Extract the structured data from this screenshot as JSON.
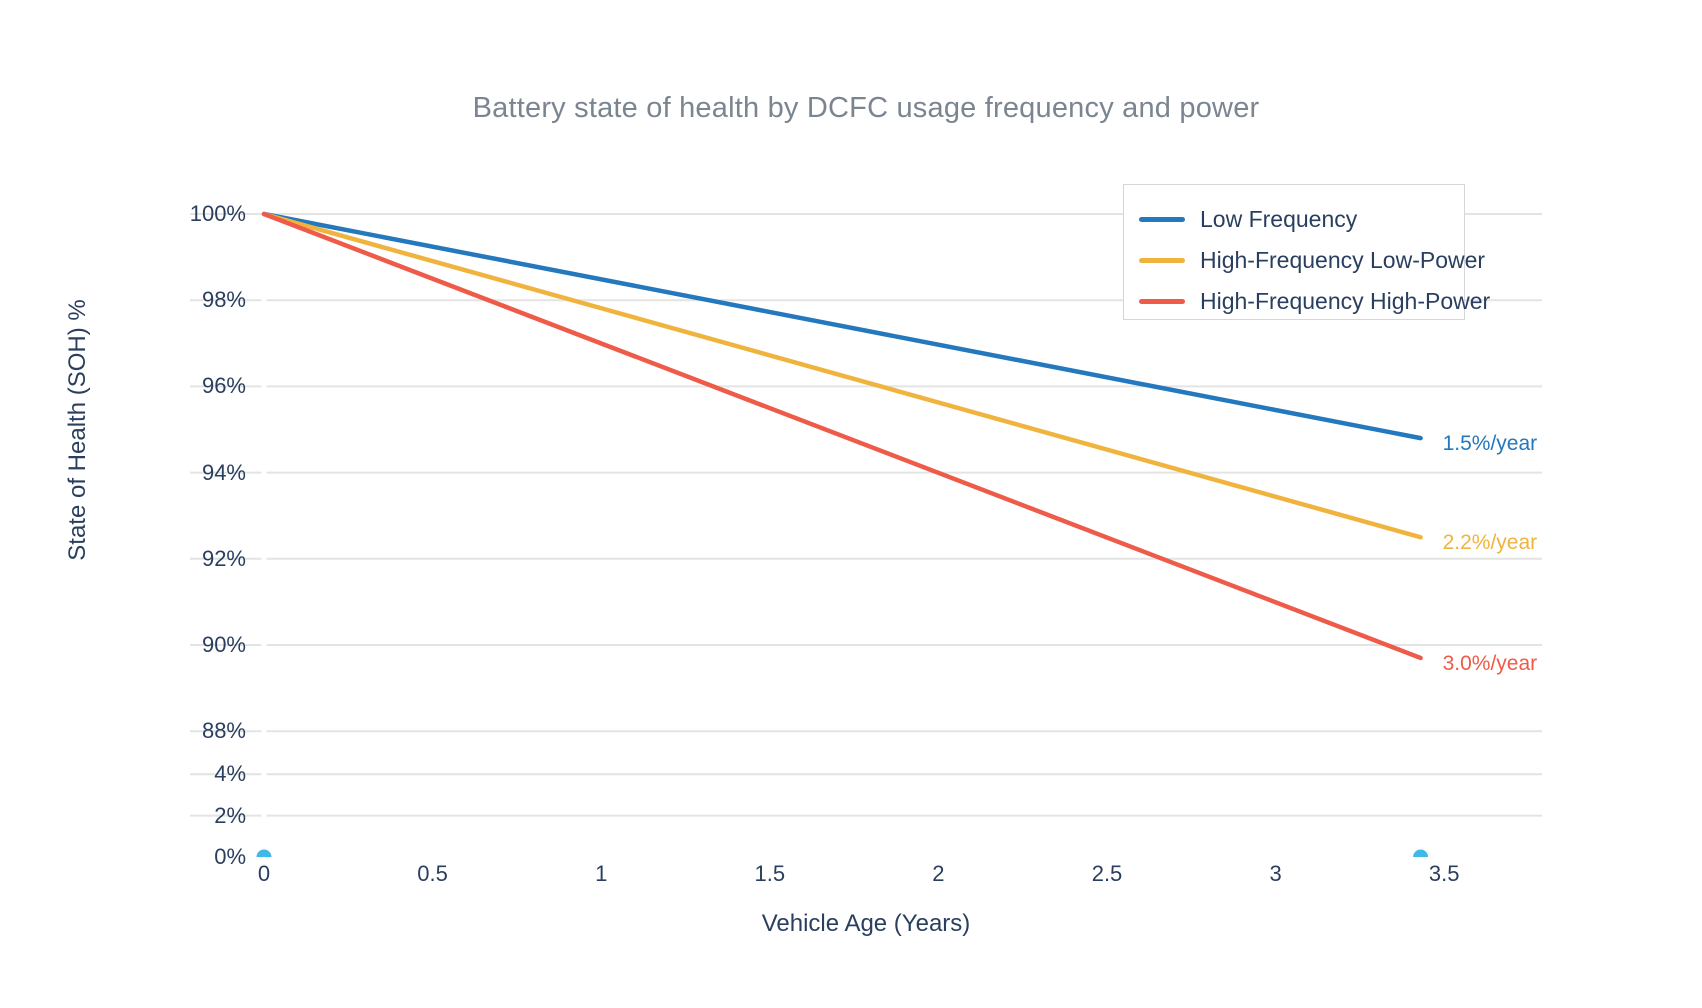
{
  "chart_data": {
    "type": "line",
    "title": "Battery state of health by DCFC usage frequency and power",
    "xlabel": "Vehicle Age (Years)",
    "ylabel": "State of Health (SOH) %",
    "grid": "horizontal-only",
    "x_axis": {
      "tick_labels": [
        "0",
        "0.5",
        "1",
        "1.5",
        "2",
        "2.5",
        "3",
        "3.5"
      ],
      "tick_values": [
        0,
        0.5,
        1,
        1.5,
        2,
        2.5,
        3,
        3.5
      ],
      "range_years": [
        -0.22,
        3.79
      ]
    },
    "y_axis": {
      "broken": true,
      "tick_labels": [
        "100%",
        "98%",
        "96%",
        "94%",
        "92%",
        "90%",
        "88%",
        "4%",
        "2%",
        "0%"
      ],
      "tick_values": [
        100,
        98,
        96,
        94,
        92,
        90,
        88,
        4,
        2,
        0
      ],
      "grid_values": [
        100,
        98,
        96,
        94,
        92,
        90,
        88,
        4,
        2
      ],
      "upper_segment_range": [
        87.6,
        100.5
      ],
      "lower_segment_range": [
        0,
        4.6
      ]
    },
    "series": [
      {
        "name": "Low Frequency",
        "color": "#2478bd",
        "x": [
          0,
          3.43
        ],
        "y": [
          100,
          94.8
        ],
        "annotation": "1.5%/year"
      },
      {
        "name": "High-Frequency Low-Power",
        "color": "#f0b43e",
        "x": [
          0,
          3.43
        ],
        "y": [
          100,
          92.5
        ],
        "annotation": "2.2%/year"
      },
      {
        "name": "High-Frequency High-Power",
        "color": "#ef5b49",
        "x": [
          0,
          3.43
        ],
        "y": [
          100,
          89.7
        ],
        "annotation": "3.0%/year"
      }
    ],
    "endpoint_markers": {
      "color": "#41b9e6",
      "points": [
        {
          "x": 0,
          "y": 0
        },
        {
          "x": 3.43,
          "y": 0
        }
      ]
    },
    "legend": {
      "position": "top-right",
      "entries": [
        "Low Frequency",
        "High-Frequency Low-Power",
        "High-Frequency High-Power"
      ]
    },
    "colors": {
      "text": "#2a3f5f",
      "title": "#7b8591",
      "grid": "#e4e4e4",
      "legend_border": "#d6d6d6",
      "background": "#ffffff"
    }
  }
}
